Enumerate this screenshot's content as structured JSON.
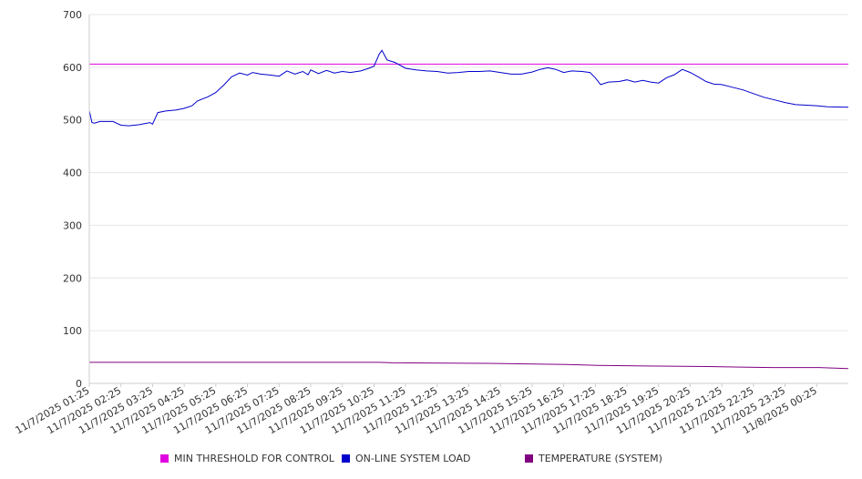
{
  "chart_data": {
    "type": "line",
    "y_ticks": [
      "0",
      "100",
      "200",
      "300",
      "400",
      "500",
      "600",
      "700"
    ],
    "ylim": [
      0,
      700
    ],
    "x_tick_labels": [
      "11/7/2025 01:25",
      "11/7/2025 02:25",
      "11/7/2025 03:25",
      "11/7/2025 04:25",
      "11/7/2025 05:25",
      "11/7/2025 06:25",
      "11/7/2025 07:25",
      "11/7/2025 08:25",
      "11/7/2025 09:25",
      "11/7/2025 10:25",
      "11/7/2025 11:25",
      "11/7/2025 12:25",
      "11/7/2025 13:25",
      "11/7/2025 14:25",
      "11/7/2025 15:25",
      "11/7/2025 16:25",
      "11/7/2025 17:25",
      "11/7/2025 18:25",
      "11/7/2025 19:25",
      "11/7/2025 20:25",
      "11/7/2025 21:25",
      "11/7/2025 22:25",
      "11/7/2025 23:25",
      "11/8/2025 00:25"
    ],
    "x_range": [
      "11/7/2025 01:25",
      "11/8/2025 01:25"
    ],
    "grid": "horizontal",
    "legend_position": "bottom",
    "series": [
      {
        "name": "MIN THRESHOLD FOR CONTROL",
        "color": "#e000e0",
        "points": [
          [
            "11/7/2025 01:25",
            606
          ],
          [
            "11/8/2025 01:25",
            606
          ]
        ]
      },
      {
        "name": "ON-LINE SYSTEM LOAD",
        "color": "#0000cc",
        "points": [
          [
            "11/7/2025 01:25",
            518
          ],
          [
            "11/7/2025 01:30",
            495
          ],
          [
            "11/7/2025 01:35",
            494
          ],
          [
            "11/7/2025 01:45",
            497
          ],
          [
            "11/7/2025 02:10",
            497
          ],
          [
            "11/7/2025 02:25",
            490
          ],
          [
            "11/7/2025 02:40",
            489
          ],
          [
            "11/7/2025 03:00",
            491
          ],
          [
            "11/7/2025 03:20",
            495
          ],
          [
            "11/7/2025 03:25",
            492
          ],
          [
            "11/7/2025 03:35",
            514
          ],
          [
            "11/7/2025 03:50",
            517
          ],
          [
            "11/7/2025 04:10",
            519
          ],
          [
            "11/7/2025 04:25",
            522
          ],
          [
            "11/7/2025 04:40",
            527
          ],
          [
            "11/7/2025 04:50",
            536
          ],
          [
            "11/7/2025 05:10",
            544
          ],
          [
            "11/7/2025 05:25",
            552
          ],
          [
            "11/7/2025 05:40",
            566
          ],
          [
            "11/7/2025 05:55",
            582
          ],
          [
            "11/7/2025 06:10",
            589
          ],
          [
            "11/7/2025 06:25",
            585
          ],
          [
            "11/7/2025 06:35",
            590
          ],
          [
            "11/7/2025 06:50",
            587
          ],
          [
            "11/7/2025 07:10",
            585
          ],
          [
            "11/7/2025 07:25",
            583
          ],
          [
            "11/7/2025 07:40",
            593
          ],
          [
            "11/7/2025 07:55",
            587
          ],
          [
            "11/7/2025 08:10",
            592
          ],
          [
            "11/7/2025 08:20",
            586
          ],
          [
            "11/7/2025 08:25",
            595
          ],
          [
            "11/7/2025 08:40",
            588
          ],
          [
            "11/7/2025 08:55",
            594
          ],
          [
            "11/7/2025 09:10",
            589
          ],
          [
            "11/7/2025 09:25",
            592
          ],
          [
            "11/7/2025 09:40",
            590
          ],
          [
            "11/7/2025 10:00",
            593
          ],
          [
            "11/7/2025 10:15",
            598
          ],
          [
            "11/7/2025 10:25",
            602
          ],
          [
            "11/7/2025 10:35",
            625
          ],
          [
            "11/7/2025 10:40",
            632
          ],
          [
            "11/7/2025 10:50",
            614
          ],
          [
            "11/7/2025 11:05",
            609
          ],
          [
            "11/7/2025 11:25",
            598
          ],
          [
            "11/7/2025 11:45",
            595
          ],
          [
            "11/7/2025 12:05",
            593
          ],
          [
            "11/7/2025 12:25",
            592
          ],
          [
            "11/7/2025 12:45",
            589
          ],
          [
            "11/7/2025 13:05",
            590
          ],
          [
            "11/7/2025 13:25",
            592
          ],
          [
            "11/7/2025 13:45",
            592
          ],
          [
            "11/7/2025 14:05",
            593
          ],
          [
            "11/7/2025 14:25",
            590
          ],
          [
            "11/7/2025 14:45",
            587
          ],
          [
            "11/7/2025 15:05",
            587
          ],
          [
            "11/7/2025 15:25",
            591
          ],
          [
            "11/7/2025 15:40",
            596
          ],
          [
            "11/7/2025 15:55",
            599
          ],
          [
            "11/7/2025 16:10",
            596
          ],
          [
            "11/7/2025 16:25",
            590
          ],
          [
            "11/7/2025 16:40",
            593
          ],
          [
            "11/7/2025 17:00",
            592
          ],
          [
            "11/7/2025 17:15",
            590
          ],
          [
            "11/7/2025 17:25",
            580
          ],
          [
            "11/7/2025 17:35",
            567
          ],
          [
            "11/7/2025 17:50",
            572
          ],
          [
            "11/7/2025 18:10",
            573
          ],
          [
            "11/7/2025 18:25",
            576
          ],
          [
            "11/7/2025 18:40",
            572
          ],
          [
            "11/7/2025 18:55",
            575
          ],
          [
            "11/7/2025 19:10",
            572
          ],
          [
            "11/7/2025 19:25",
            570
          ],
          [
            "11/7/2025 19:40",
            580
          ],
          [
            "11/7/2025 19:55",
            586
          ],
          [
            "11/7/2025 20:10",
            596
          ],
          [
            "11/7/2025 20:25",
            590
          ],
          [
            "11/7/2025 20:40",
            582
          ],
          [
            "11/7/2025 20:55",
            573
          ],
          [
            "11/7/2025 21:10",
            568
          ],
          [
            "11/7/2025 21:25",
            567
          ],
          [
            "11/7/2025 21:45",
            562
          ],
          [
            "11/7/2025 22:05",
            557
          ],
          [
            "11/7/2025 22:25",
            550
          ],
          [
            "11/7/2025 22:45",
            543
          ],
          [
            "11/7/2025 23:05",
            538
          ],
          [
            "11/7/2025 23:25",
            533
          ],
          [
            "11/7/2025 23:45",
            529
          ],
          [
            "11/8/2025 00:05",
            528
          ],
          [
            "11/8/2025 00:25",
            527
          ],
          [
            "11/8/2025 00:45",
            525
          ],
          [
            "11/8/2025 01:25",
            524
          ]
        ]
      },
      {
        "name": "TEMPERATURE (SYSTEM)",
        "color": "#800080",
        "points": [
          [
            "11/7/2025 01:25",
            40
          ],
          [
            "11/7/2025 08:00",
            40
          ],
          [
            "11/7/2025 10:35",
            40
          ],
          [
            "11/7/2025 11:00",
            39
          ],
          [
            "11/7/2025 14:00",
            38
          ],
          [
            "11/7/2025 16:30",
            36
          ],
          [
            "11/7/2025 17:30",
            34
          ],
          [
            "11/7/2025 19:00",
            33
          ],
          [
            "11/7/2025 21:00",
            32
          ],
          [
            "11/7/2025 22:00",
            31
          ],
          [
            "11/7/2025 23:00",
            30
          ],
          [
            "11/8/2025 00:30",
            30
          ],
          [
            "11/8/2025 01:00",
            29
          ],
          [
            "11/8/2025 01:25",
            28
          ]
        ]
      }
    ]
  }
}
